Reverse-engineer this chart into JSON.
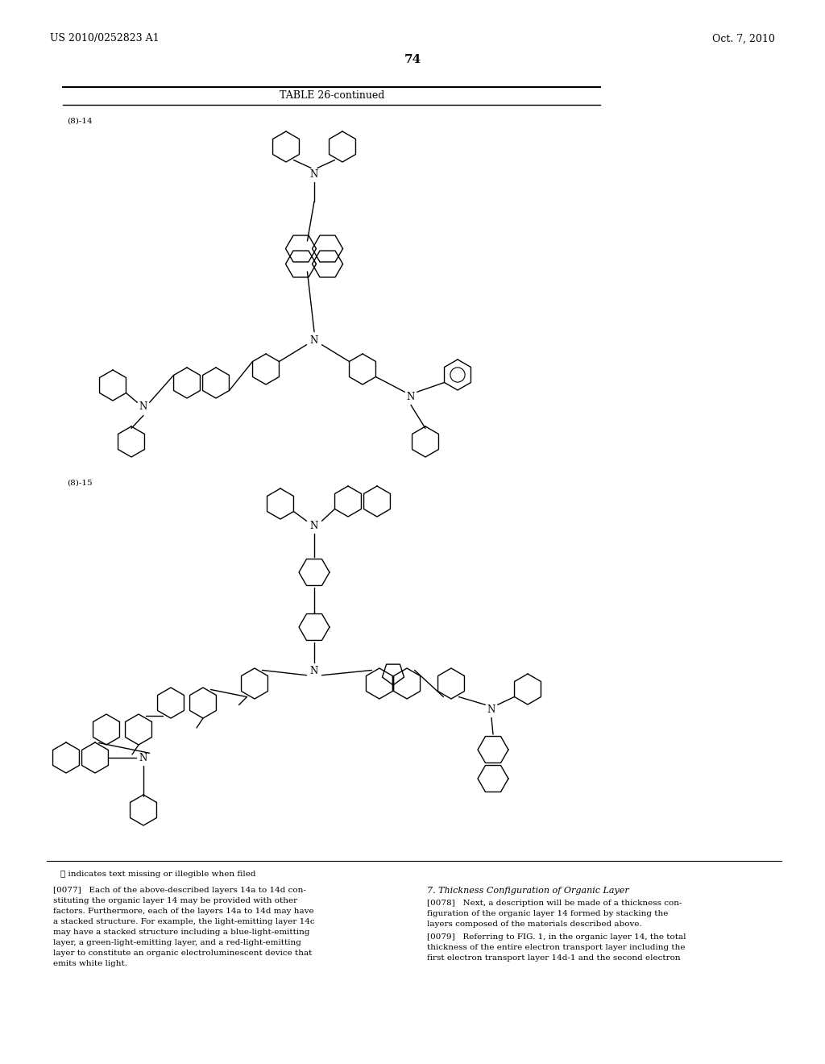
{
  "page_header_left": "US 2010/0252823 A1",
  "page_header_right": "Oct. 7, 2010",
  "page_number": "74",
  "table_title": "TABLE 26-continued",
  "label_8_14": "(8)-14",
  "label_8_15": "(8)-15",
  "footnote": "Ⓢ indicates text missing or illegible when filed",
  "left_col_text": "[0077]   Each of the above-described layers 14a to 14d con-\nstituting the organic layer 14 may be provided with other\nfactors. Furthermore, each of the layers 14a to 14d may have\na stacked structure. For example, the light-emitting layer 14c\nmay have a stacked structure including a blue-light-emitting\nlayer, a green-light-emitting layer, and a red-light-emitting\nlayer to constitute an organic electroluminescent device that\nemits white light.",
  "right_col_heading": "7. Thickness Configuration of Organic Layer",
  "right_col_p1": "[0078]   Next, a description will be made of a thickness con-\nfiguration of the organic layer 14 formed by stacking the\nlayers composed of the materials described above.",
  "right_col_p2": "[0079]   Referring to FIG. 1, in the organic layer 14, the total\nthickness of the entire electron transport layer including the\nfirst electron transport layer 14d-1 and the second electron",
  "bg_color": "#ffffff",
  "fg_color": "#000000"
}
